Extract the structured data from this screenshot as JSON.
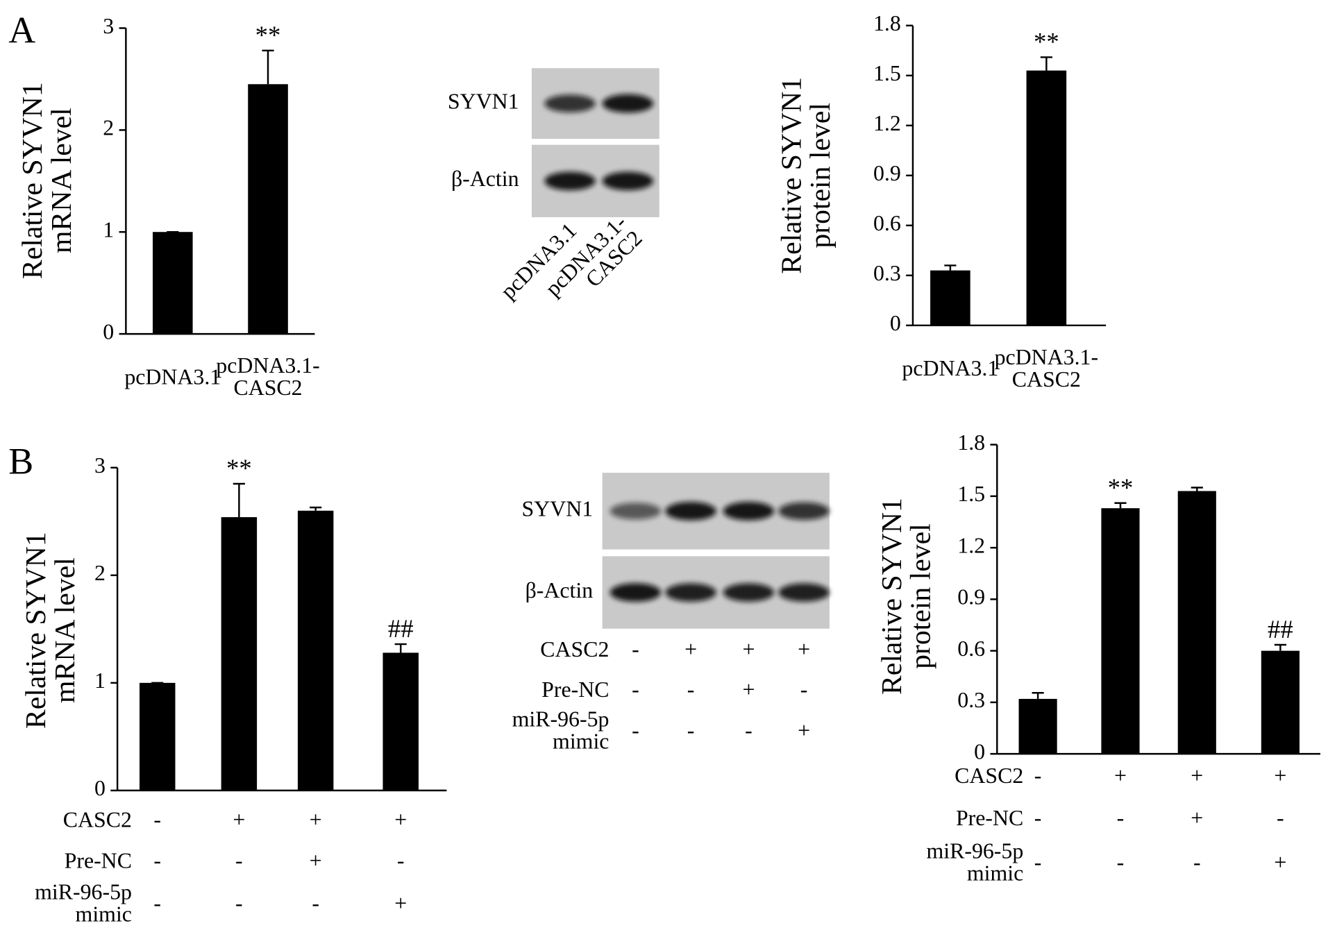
{
  "figure_labels": [
    "A",
    "B"
  ],
  "chart_data": [
    {
      "type": "bar",
      "ylabel": "Relative SYVN1\nmRNA level",
      "categories": [
        "pcDNA3.1",
        "pcDNA3.1-\nCASC2"
      ],
      "values": [
        1,
        2.45
      ],
      "errors": [
        0,
        0.33
      ],
      "significance": [
        null,
        "**"
      ],
      "color": "#000000",
      "ylim": [
        0,
        3
      ],
      "yticks": [
        0,
        1,
        2,
        3
      ]
    },
    {
      "type": "bar",
      "ylabel": "Relative SYVN1\nprotein level",
      "categories": [
        "pcDNA3.1",
        "pcDNA3.1-\nCASC2"
      ],
      "values": [
        0.33,
        1.53
      ],
      "errors": [
        0.03,
        0.08
      ],
      "significance": [
        null,
        "**"
      ],
      "color": "#000000",
      "ylim": [
        0,
        1.8
      ],
      "yticks": [
        0,
        0.3,
        0.6,
        0.9,
        1.2,
        1.5,
        1.8
      ]
    },
    {
      "type": "bar",
      "ylabel": "Relative SYVN1\nmRNA level",
      "categories": [
        null,
        null,
        null,
        null
      ],
      "values": [
        1,
        2.54,
        2.6,
        1.28
      ],
      "errors": [
        0,
        0.31,
        0.03,
        0.08
      ],
      "significance": [
        null,
        "**",
        null,
        "##"
      ],
      "color": "#000000",
      "ylim": [
        0,
        3
      ],
      "yticks": [
        0,
        1,
        2,
        3
      ],
      "conditions": [
        {
          "name": "CASC2",
          "marks": [
            "-",
            "+",
            "+",
            "+"
          ]
        },
        {
          "name": "Pre-NC",
          "marks": [
            "-",
            "-",
            "+",
            "-"
          ]
        },
        {
          "name": "miR-96-5p\nmimic",
          "marks": [
            "-",
            "-",
            "-",
            "+"
          ]
        }
      ]
    },
    {
      "type": "bar",
      "ylabel": "Relative SYVN1\nprotein level",
      "categories": [
        null,
        null,
        null,
        null
      ],
      "values": [
        0.32,
        1.43,
        1.53,
        0.6
      ],
      "errors": [
        0.035,
        0.03,
        0.02,
        0.035
      ],
      "significance": [
        null,
        "**",
        null,
        "##"
      ],
      "color": "#000000",
      "ylim": [
        0,
        1.8
      ],
      "yticks": [
        0,
        0.3,
        0.6,
        0.9,
        1.2,
        1.5,
        1.8
      ],
      "conditions": [
        {
          "name": "CASC2",
          "marks": [
            "-",
            "+",
            "+",
            "+"
          ]
        },
        {
          "name": "Pre-NC",
          "marks": [
            "-",
            "-",
            "+",
            "-"
          ]
        },
        {
          "name": "miR-96-5p\nmimic",
          "marks": [
            "-",
            "-",
            "-",
            "+"
          ]
        }
      ]
    }
  ],
  "blots": [
    {
      "rows": [
        "SYVN1",
        "β-Actin"
      ],
      "lanes": [
        "pcDNA3.1",
        "pcDNA3.1-\nCASC2"
      ]
    },
    {
      "rows": [
        "SYVN1",
        "β-Actin"
      ],
      "conditions": [
        {
          "name": "CASC2",
          "marks": [
            "-",
            "+",
            "+",
            "+"
          ]
        },
        {
          "name": "Pre-NC",
          "marks": [
            "-",
            "-",
            "+",
            "-"
          ]
        },
        {
          "name": "miR-96-5p\nmimic",
          "marks": [
            "-",
            "-",
            "-",
            "+"
          ]
        }
      ]
    }
  ]
}
